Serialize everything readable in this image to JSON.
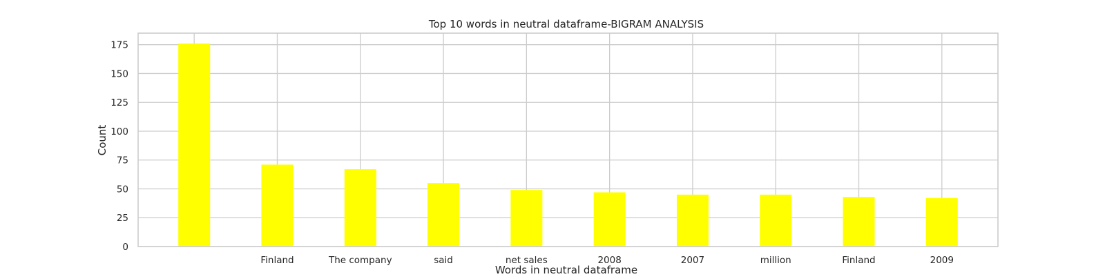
{
  "chart_data": {
    "type": "bar",
    "title": "Top 10 words in neutral dataframe-BIGRAM ANALYSIS",
    "xlabel": "Words in neutral dataframe",
    "ylabel": "Count",
    "categories": [
      "",
      "Finland",
      "The company",
      "said",
      "net sales",
      "2008",
      "2007",
      "million",
      "Finland",
      "2009"
    ],
    "values": [
      176,
      71,
      67,
      55,
      49,
      47,
      45,
      45,
      43,
      42
    ],
    "ylim": [
      0,
      185
    ],
    "yticks": [
      0,
      25,
      50,
      75,
      100,
      125,
      150,
      175
    ],
    "ytick_labels": [
      "0",
      "25",
      "50",
      "75",
      "100",
      "125",
      "150",
      "175"
    ],
    "bar_color": "#ffff00",
    "grid": true,
    "grid_color": "#cccccc",
    "frame_color": "#cccccc"
  }
}
